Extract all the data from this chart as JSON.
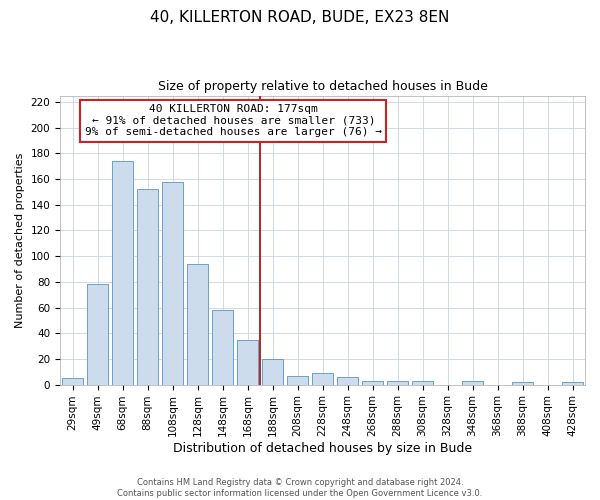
{
  "title": "40, KILLERTON ROAD, BUDE, EX23 8EN",
  "subtitle": "Size of property relative to detached houses in Bude",
  "xlabel": "Distribution of detached houses by size in Bude",
  "ylabel": "Number of detached properties",
  "bar_color": "#ccdcec",
  "bar_edge_color": "#6aa0cc",
  "categories": [
    "29sqm",
    "49sqm",
    "68sqm",
    "88sqm",
    "108sqm",
    "128sqm",
    "148sqm",
    "168sqm",
    "188sqm",
    "208sqm",
    "228sqm",
    "248sqm",
    "268sqm",
    "288sqm",
    "308sqm",
    "328sqm",
    "348sqm",
    "368sqm",
    "388sqm",
    "408sqm",
    "428sqm"
  ],
  "values": [
    5,
    78,
    174,
    152,
    158,
    94,
    58,
    35,
    20,
    7,
    9,
    6,
    3,
    3,
    3,
    0,
    3,
    0,
    2,
    0,
    2
  ],
  "ylim": [
    0,
    225
  ],
  "yticks": [
    0,
    20,
    40,
    60,
    80,
    100,
    120,
    140,
    160,
    180,
    200,
    220
  ],
  "vline_x_index": 7.5,
  "vline_color": "#aa0000",
  "annotation_title": "40 KILLERTON ROAD: 177sqm",
  "annotation_line1": "← 91% of detached houses are smaller (733)",
  "annotation_line2": "9% of semi-detached houses are larger (76) →",
  "footer1": "Contains HM Land Registry data © Crown copyright and database right 2024.",
  "footer2": "Contains public sector information licensed under the Open Government Licence v3.0.",
  "background_color": "#ffffff",
  "grid_color": "#c8d4e0",
  "title_fontsize": 11,
  "subtitle_fontsize": 9,
  "xlabel_fontsize": 9,
  "ylabel_fontsize": 8,
  "tick_fontsize": 7.5,
  "ann_fontsize": 8,
  "footer_fontsize": 6
}
